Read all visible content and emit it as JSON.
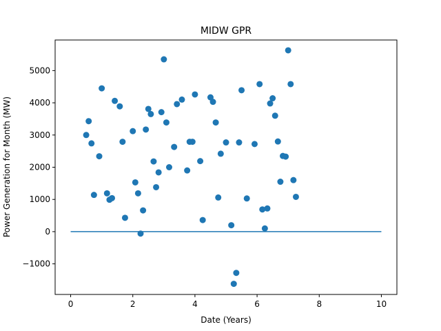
{
  "chart_data": {
    "type": "scatter",
    "title": "MIDW GPR",
    "xlabel": "Date (Years)",
    "ylabel": "Power Generation for Month (MW)",
    "xlim": [
      -0.5,
      10.5
    ],
    "ylim": [
      -1950,
      5950
    ],
    "xticks": [
      0,
      2,
      4,
      6,
      8,
      10
    ],
    "yticks": [
      -1000,
      0,
      1000,
      2000,
      3000,
      4000,
      5000
    ],
    "grid": false,
    "colors": {
      "marker": "#1f77b4",
      "line": "#1f77b4"
    },
    "series": [
      {
        "kind": "scatter",
        "points": [
          [
            0.5,
            3000
          ],
          [
            0.58,
            3430
          ],
          [
            0.67,
            2740
          ],
          [
            0.75,
            1140
          ],
          [
            0.92,
            2340
          ],
          [
            1.0,
            4450
          ],
          [
            1.17,
            1190
          ],
          [
            1.25,
            990
          ],
          [
            1.33,
            1040
          ],
          [
            1.42,
            4060
          ],
          [
            1.58,
            3890
          ],
          [
            1.67,
            2790
          ],
          [
            1.75,
            430
          ],
          [
            2.0,
            3120
          ],
          [
            2.08,
            1530
          ],
          [
            2.17,
            1190
          ],
          [
            2.25,
            -60
          ],
          [
            2.33,
            660
          ],
          [
            2.42,
            3170
          ],
          [
            2.5,
            3810
          ],
          [
            2.58,
            3650
          ],
          [
            2.67,
            2180
          ],
          [
            2.75,
            1380
          ],
          [
            2.83,
            1840
          ],
          [
            2.92,
            3710
          ],
          [
            3.0,
            5350
          ],
          [
            3.08,
            3390
          ],
          [
            3.17,
            2000
          ],
          [
            3.33,
            2630
          ],
          [
            3.42,
            3960
          ],
          [
            3.58,
            4100
          ],
          [
            3.75,
            1900
          ],
          [
            3.83,
            2790
          ],
          [
            3.92,
            2790
          ],
          [
            4.0,
            4260
          ],
          [
            4.17,
            2190
          ],
          [
            4.25,
            360
          ],
          [
            4.5,
            4170
          ],
          [
            4.58,
            4030
          ],
          [
            4.67,
            3390
          ],
          [
            4.75,
            1060
          ],
          [
            4.83,
            2420
          ],
          [
            5.0,
            2770
          ],
          [
            5.17,
            200
          ],
          [
            5.25,
            -1620
          ],
          [
            5.33,
            -1280
          ],
          [
            5.42,
            2770
          ],
          [
            5.5,
            4390
          ],
          [
            5.67,
            1030
          ],
          [
            5.92,
            2720
          ],
          [
            6.08,
            4580
          ],
          [
            6.17,
            690
          ],
          [
            6.25,
            100
          ],
          [
            6.33,
            720
          ],
          [
            6.42,
            3980
          ],
          [
            6.5,
            4140
          ],
          [
            6.58,
            3600
          ],
          [
            6.67,
            2800
          ],
          [
            6.75,
            1550
          ],
          [
            6.83,
            2350
          ],
          [
            6.92,
            2330
          ],
          [
            7.0,
            5630
          ],
          [
            7.08,
            4580
          ],
          [
            7.17,
            1600
          ],
          [
            7.25,
            1080
          ]
        ]
      },
      {
        "kind": "line",
        "points": [
          [
            0,
            0
          ],
          [
            10,
            0
          ]
        ]
      }
    ]
  }
}
